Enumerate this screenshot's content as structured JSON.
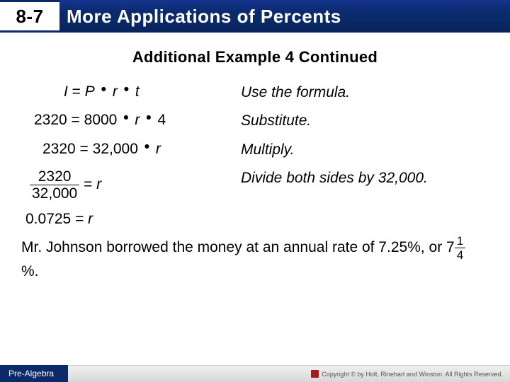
{
  "header": {
    "lesson_number": "8-7",
    "title": "More Applications of Percents"
  },
  "subheading": "Additional Example 4 Continued",
  "steps": [
    {
      "left_html": "<span class='ital'>I</span> = <span class='ital'>P</span> <span class='dot'>•</span> <span class='ital'>r</span> <span class='dot'>•</span> <span class='ital'>t</span>",
      "right": "Use the formula.",
      "cls": "l1"
    },
    {
      "left_html": "2320 = 8000 <span class='dot'>•</span> <span class='ital'>r</span> <span class='dot'>•</span> 4",
      "right": "Substitute.",
      "cls": "l2"
    },
    {
      "left_html": "2320 = 32,000 <span class='dot'>•</span> <span class='ital'>r</span>",
      "right": "Multiply.",
      "cls": "l3"
    },
    {
      "left_html": "<span class='frac'><span class='num'>&nbsp;2320&nbsp;</span><span class='den'>32,000</span></span>&nbsp;= <span class='ital'>r</span>",
      "right": "Divide both sides by 32,000.",
      "cls": "l4"
    }
  ],
  "answer_line_html": "0.0725 = <span class='ital'>r</span>",
  "summary_html": "Mr. Johnson borrowed the money at an annual rate of 7.25%, or 7<span class='frac sm'><span class='num'>1</span><span class='den'>4</span></span>%.",
  "footer": {
    "course": "Pre-Algebra",
    "copyright": "Copyright © by Holt, Rinehart and Winston. All Rights Reserved."
  },
  "colors": {
    "header_bg": "#0a2a6a",
    "header_text": "#ffffff",
    "body_text": "#000000"
  }
}
